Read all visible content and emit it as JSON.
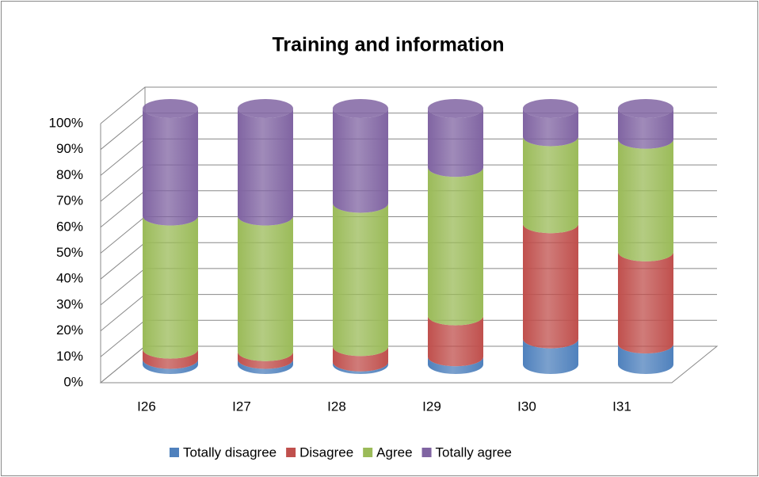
{
  "chart_data": {
    "type": "stacked_cylinder",
    "title": "Training and information",
    "categories": [
      "I26",
      "I27",
      "I28",
      "I29",
      "I30",
      "I31"
    ],
    "series": [
      {
        "name": "Totally disagree",
        "color": "#4f81bd",
        "values": [
          2,
          2,
          1,
          3,
          10,
          8
        ]
      },
      {
        "name": "Disagree",
        "color": "#c0504d",
        "values": [
          4,
          3,
          6,
          16,
          45,
          36
        ]
      },
      {
        "name": "Agree",
        "color": "#9bbb59",
        "values": [
          52,
          53,
          56,
          58,
          34,
          44
        ]
      },
      {
        "name": "Totally agree",
        "color": "#8064a2",
        "values": [
          42,
          42,
          37,
          23,
          11,
          12
        ]
      }
    ],
    "ylim": [
      0,
      100
    ],
    "yticks": [
      {
        "value": 0,
        "label": "0%"
      },
      {
        "value": 10,
        "label": "10%"
      },
      {
        "value": 20,
        "label": "20%"
      },
      {
        "value": 30,
        "label": "30%"
      },
      {
        "value": 40,
        "label": "40%"
      },
      {
        "value": 50,
        "label": "50%"
      },
      {
        "value": 60,
        "label": "60%"
      },
      {
        "value": 70,
        "label": "70%"
      },
      {
        "value": 80,
        "label": "80%"
      },
      {
        "value": 90,
        "label": "90%"
      },
      {
        "value": 100,
        "label": "100%"
      }
    ],
    "grid": true,
    "legend": "bottom"
  }
}
